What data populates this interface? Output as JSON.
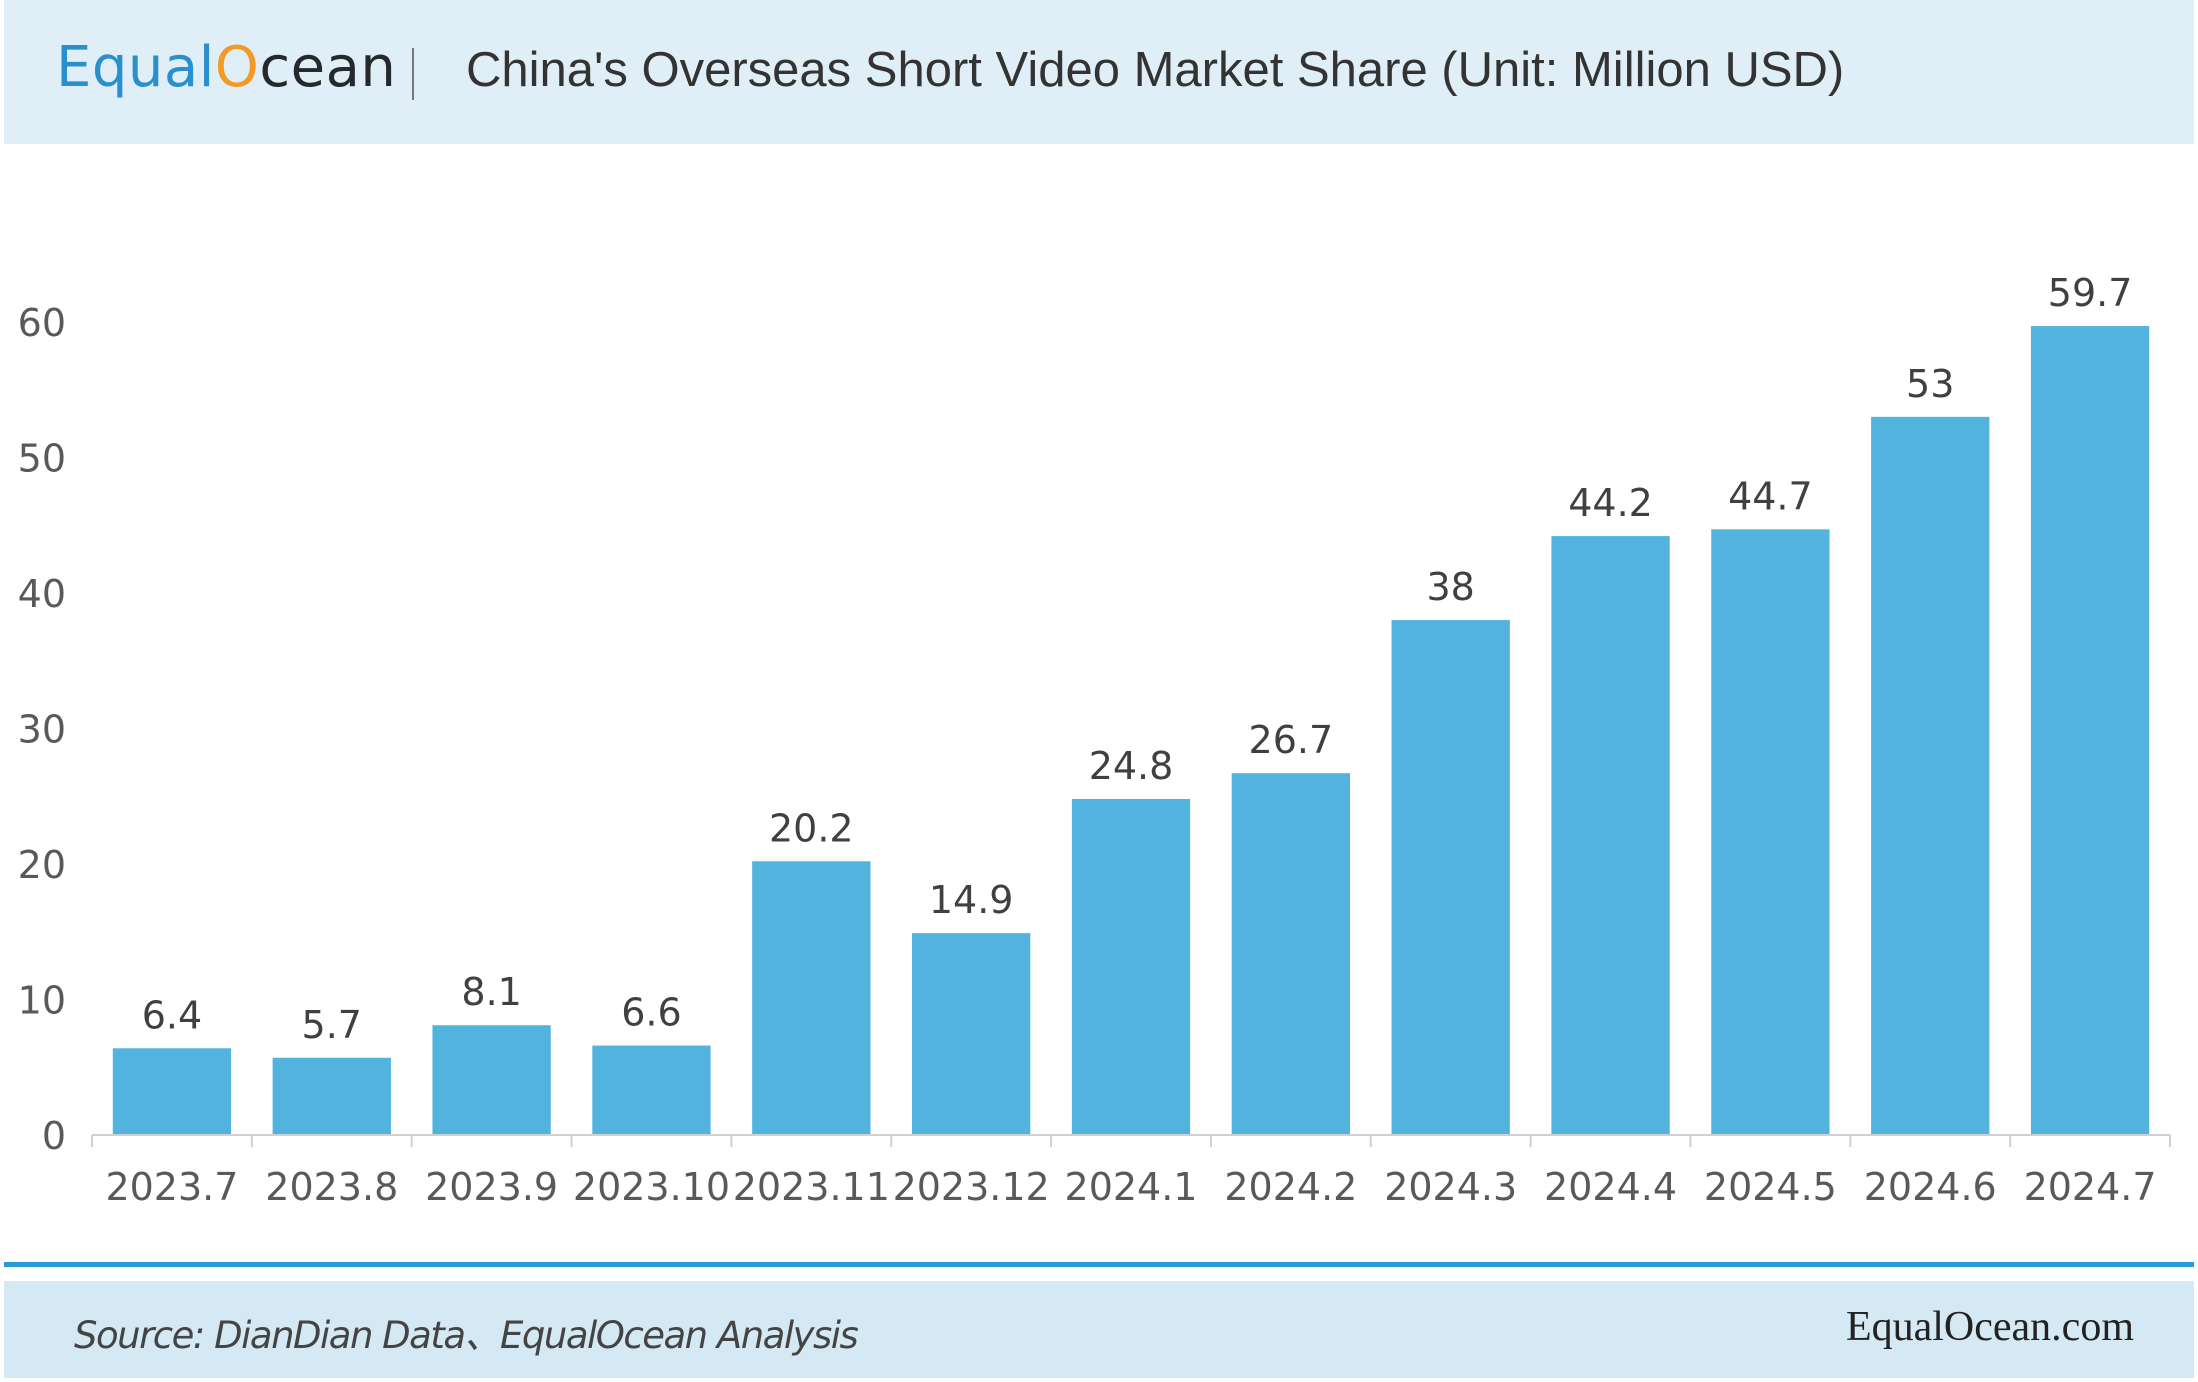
{
  "header": {
    "logo_text_pre": "Equal",
    "logo_text_o": "O",
    "logo_text_post": "cean",
    "title": "China's Overseas Short Video Market Share (Unit: Million USD)"
  },
  "footer": {
    "source": "Source:  DianDian Data、EqualOcean Analysis",
    "site": "EqualOcean.com"
  },
  "colors": {
    "bar": "#51b3de",
    "header_bg": "#e0eff7",
    "footer_bg": "#d5e9f4",
    "accent_line": "#2a9ad6",
    "logo_accent": "#f29a25"
  },
  "chart_data": {
    "type": "bar",
    "categories": [
      "2023.7",
      "2023.8",
      "2023.9",
      "2023.10",
      "2023.11",
      "2023.12",
      "2024.1",
      "2024.2",
      "2024.3",
      "2024.4",
      "2024.5",
      "2024.6",
      "2024.7"
    ],
    "values": [
      6.4,
      5.7,
      8.1,
      6.6,
      20.2,
      14.9,
      24.8,
      26.7,
      38,
      44.2,
      44.7,
      53,
      59.7
    ],
    "data_labels": [
      "6.4",
      "5.7",
      "8.1",
      "6.6",
      "20.2",
      "14.9",
      "24.8",
      "26.7",
      "38",
      "44.2",
      "44.7",
      "53",
      "59.7"
    ],
    "y_ticks": [
      0,
      10,
      20,
      30,
      40,
      50,
      60
    ],
    "ylim": [
      0,
      60
    ],
    "grid": false,
    "legend": "none"
  }
}
